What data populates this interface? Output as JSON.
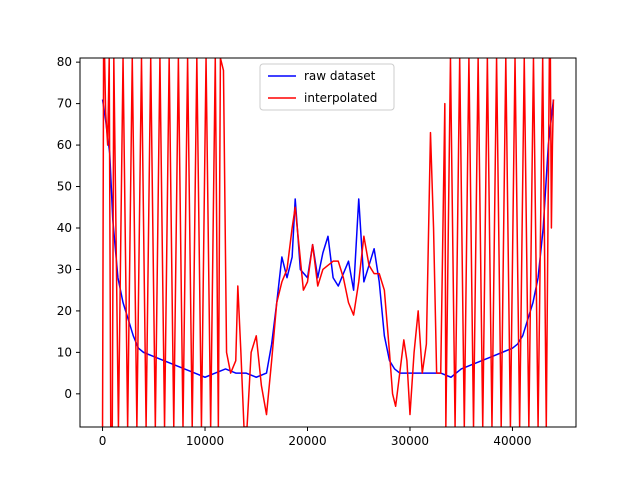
{
  "chart_data": {
    "type": "line",
    "title": "",
    "xlabel": "",
    "ylabel": "",
    "xlim": [
      -2200,
      46200
    ],
    "ylim": [
      -8,
      81
    ],
    "x_ticks": [
      0,
      10000,
      20000,
      30000,
      40000
    ],
    "y_ticks": [
      0,
      10,
      20,
      30,
      40,
      50,
      60,
      70,
      80
    ],
    "legend_position": "upper center",
    "series": [
      {
        "name": "raw dataset",
        "color": "#0000ff",
        "x": [
          0,
          300,
          700,
          1000,
          1500,
          2000,
          2500,
          3000,
          3500,
          4000,
          5000,
          6000,
          7000,
          8000,
          9000,
          10000,
          11000,
          12000,
          13000,
          14000,
          15000,
          16000,
          16500,
          17000,
          17500,
          18000,
          18500,
          18800,
          19300,
          20000,
          20500,
          21000,
          21500,
          22000,
          22500,
          23000,
          23500,
          24000,
          24500,
          25000,
          25500,
          26000,
          26500,
          27000,
          27500,
          28000,
          28500,
          29000,
          30000,
          31000,
          32000,
          33000,
          34000,
          35000,
          36000,
          37000,
          38000,
          39000,
          40000,
          40500,
          41000,
          41500,
          42000,
          42500,
          43000,
          43500,
          44000
        ],
        "y": [
          71,
          66,
          58,
          42,
          28,
          22,
          18,
          14,
          11,
          10,
          9,
          8,
          7,
          6,
          5,
          4,
          5,
          6,
          5,
          5,
          4,
          5,
          12,
          22,
          33,
          28,
          33,
          47,
          30,
          28,
          36,
          28,
          34,
          38,
          28,
          26,
          29,
          32,
          25,
          47,
          27,
          31,
          35,
          27,
          14,
          8,
          6,
          5,
          5,
          5,
          5,
          5,
          4,
          6,
          7,
          8,
          9,
          10,
          11,
          12,
          14,
          18,
          22,
          28,
          40,
          60,
          71
        ]
      },
      {
        "name": "interpolated",
        "color": "#ff0000",
        "x": [
          0,
          100,
          200,
          300,
          500,
          650,
          800,
          950,
          1100,
          1550,
          2000,
          2450,
          2900,
          3350,
          3800,
          4250,
          4700,
          5150,
          5600,
          6050,
          6500,
          6950,
          7400,
          7850,
          8300,
          8750,
          9200,
          9650,
          10100,
          10550,
          11000,
          11300,
          11500,
          11800,
          12100,
          12500,
          13000,
          13200,
          13500,
          13800,
          14100,
          14500,
          15000,
          15500,
          16000,
          16500,
          17000,
          17500,
          18000,
          18500,
          18800,
          19200,
          19600,
          20000,
          20500,
          21000,
          21500,
          22000,
          22500,
          23000,
          23500,
          24000,
          24500,
          25000,
          25500,
          26000,
          26500,
          27000,
          27500,
          28000,
          28300,
          28600,
          29000,
          29400,
          29700,
          30000,
          30400,
          30800,
          31200,
          31600,
          32000,
          32300,
          32600,
          33000,
          33400,
          33500,
          33950,
          34400,
          34850,
          35300,
          35750,
          36200,
          36650,
          37100,
          37550,
          38000,
          38450,
          38900,
          39350,
          39800,
          40250,
          40700,
          41150,
          41600,
          42050,
          42500,
          42950,
          43300,
          43600,
          43700,
          43800,
          43900,
          44000
        ],
        "y": [
          -8,
          81,
          81,
          68,
          60,
          81,
          -8,
          -8,
          81,
          -8,
          81,
          -8,
          81,
          -8,
          81,
          -8,
          81,
          -8,
          81,
          -8,
          81,
          -8,
          81,
          -8,
          81,
          -8,
          81,
          -8,
          81,
          -8,
          81,
          -8,
          81,
          78,
          10,
          5,
          8,
          26,
          10,
          -8,
          -8,
          10,
          14,
          2,
          -5,
          8,
          22,
          27,
          30,
          40,
          45,
          35,
          25,
          27,
          36,
          26,
          30,
          31,
          32,
          32,
          28,
          22,
          19,
          27,
          38,
          31,
          29,
          29,
          25,
          10,
          0,
          -3,
          5,
          13,
          8,
          -5,
          10,
          20,
          5,
          12,
          63,
          40,
          5,
          5,
          70,
          -8,
          81,
          -8,
          81,
          -8,
          81,
          -8,
          81,
          -8,
          81,
          -8,
          81,
          -8,
          81,
          -8,
          81,
          -8,
          81,
          -8,
          81,
          -8,
          81,
          -8,
          81,
          81,
          40,
          60,
          71
        ]
      }
    ]
  }
}
